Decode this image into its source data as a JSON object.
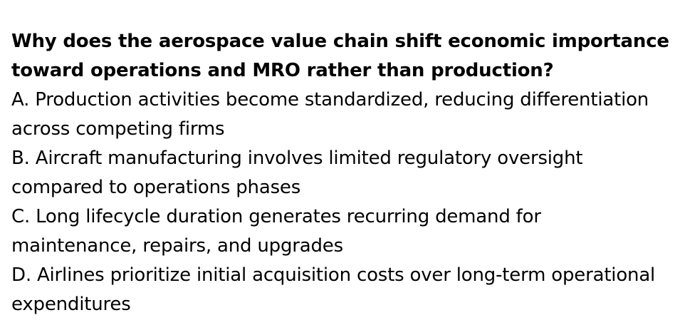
{
  "question": "Why does the aerospace value chain shift economic importance toward operations and MRO rather than production?",
  "options": [
    "A. Production activities become standardized, reducing differentiation across competing firms",
    "B. Aircraft manufacturing involves limited regulatory oversight compared to operations phases",
    "C. Long lifecycle duration generates recurring demand for maintenance, repairs, and upgrades",
    "D. Airlines prioritize initial acquisition costs over long-term operational expenditures"
  ]
}
